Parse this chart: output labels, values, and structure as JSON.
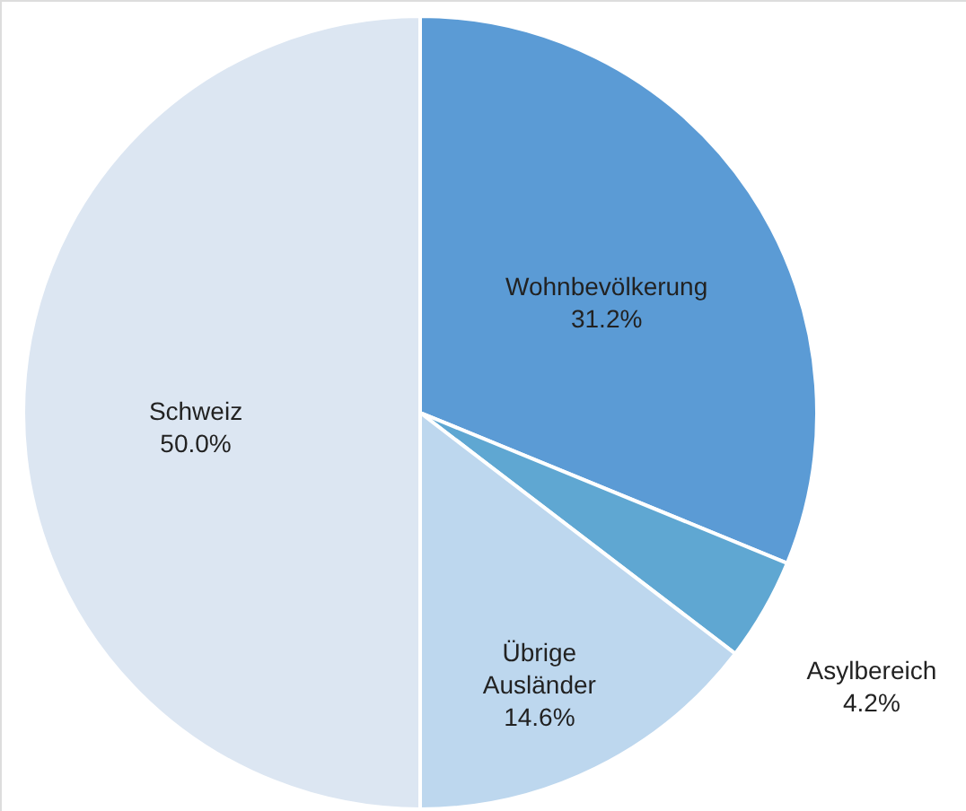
{
  "chart_data": {
    "type": "pie",
    "categories": [
      "Wohnbevölkerung",
      "Asylbereich",
      "Übrige Ausländer",
      "Schweiz"
    ],
    "values": [
      31.2,
      4.2,
      14.6,
      50.0
    ],
    "colors": [
      "#5b9bd5",
      "#5fa7d2",
      "#bdd7ee",
      "#dce6f2"
    ],
    "value_labels": [
      "31.2%",
      "4.2%",
      "14.6%",
      "50.0%"
    ]
  }
}
